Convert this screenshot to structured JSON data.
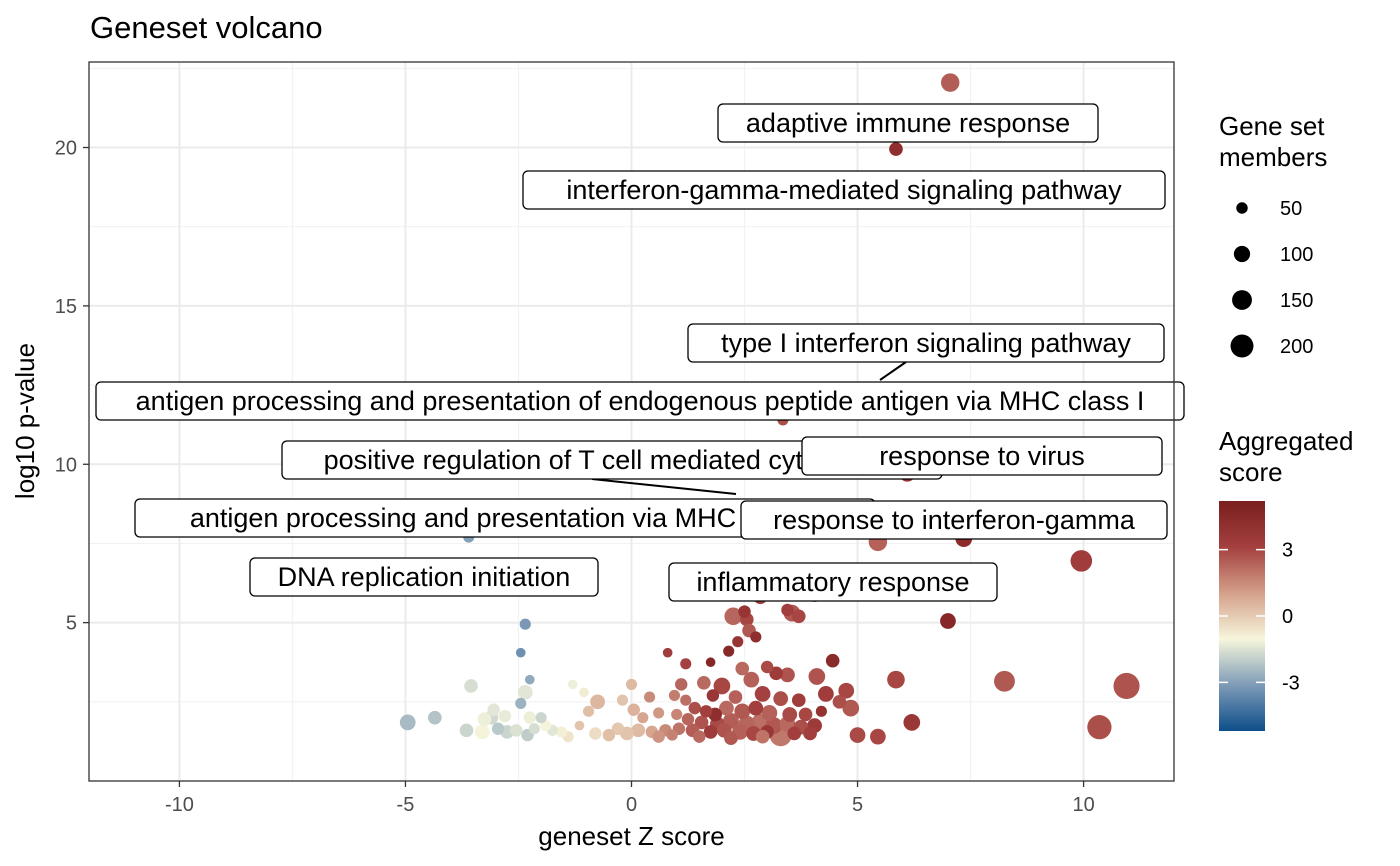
{
  "chart_data": {
    "type": "scatter",
    "title": "Geneset volcano",
    "xlabel": "geneset Z score",
    "ylabel": "log10 p-value",
    "xlim": [
      -12,
      12
    ],
    "ylim": [
      0,
      22.7
    ],
    "x_ticks": [
      -10,
      -5,
      0,
      5,
      10
    ],
    "y_ticks": [
      5,
      10,
      15,
      20
    ],
    "x_tick_labels": [
      "-10",
      "-5",
      "0",
      "5",
      "10"
    ],
    "y_tick_labels": [
      "5",
      "10",
      "15",
      "20"
    ],
    "grid": true,
    "legend_position": "right",
    "size_legend": {
      "title": "Gene set members",
      "title_lines": [
        "Gene set",
        "members"
      ],
      "entries": [
        {
          "label": "50",
          "value": 50
        },
        {
          "label": "100",
          "value": 100
        },
        {
          "label": "150",
          "value": 150
        },
        {
          "label": "200",
          "value": 200
        }
      ]
    },
    "color_legend": {
      "title": "Aggregated score",
      "title_lines": [
        "Aggregated",
        "score"
      ],
      "ticks": [
        {
          "label": "3",
          "value": 3
        },
        {
          "label": "0",
          "value": 0
        },
        {
          "label": "-3",
          "value": -3
        }
      ],
      "range": [
        -5.2,
        5.2
      ],
      "colors": [
        "#0d4e8a",
        "#7e9bb7",
        "#f6f6dc",
        "#d4a08a",
        "#a4403f",
        "#7a1e1e"
      ]
    },
    "labels": [
      {
        "text": "adaptive immune response",
        "x": 7.1,
        "y": 22.05
      },
      {
        "text": "interferon-gamma-mediated signaling pathway",
        "x": 5.85,
        "y": 19.95
      },
      {
        "text": "type I interferon signaling pathway",
        "x": 5.1,
        "y": 12.6
      },
      {
        "text": "antigen processing and presentation of endogenous peptide antigen via MHC class I",
        "x": 3.5,
        "y": 11.6
      },
      {
        "text": "positive regulation of T cell mediated cytotoxicity",
        "x": 2.4,
        "y": 9.2
      },
      {
        "text": "response to virus",
        "x": 6.1,
        "y": 9.7
      },
      {
        "text": "antigen processing and presentation via MHC class I",
        "x": 3.3,
        "y": 8.5
      },
      {
        "text": "response to interferon-gamma",
        "x": 5.5,
        "y": 7.55
      },
      {
        "text": "DNA replication initiation",
        "x": -3.6,
        "y": 7.7
      },
      {
        "text": "inflammatory response",
        "x": 3.0,
        "y": 6.2
      }
    ],
    "points": [
      {
        "x": 7.05,
        "y": 22.05,
        "size": 110,
        "score": 2.5
      },
      {
        "x": 5.85,
        "y": 19.95,
        "size": 60,
        "score": 4.2
      },
      {
        "x": 3.35,
        "y": 11.4,
        "size": 40,
        "score": 2.8
      },
      {
        "x": 6.1,
        "y": 9.7,
        "size": 80,
        "score": 4.0
      },
      {
        "x": 5.45,
        "y": 7.55,
        "size": 110,
        "score": 2.4
      },
      {
        "x": 7.35,
        "y": 7.65,
        "size": 90,
        "score": 4.3
      },
      {
        "x": 9.95,
        "y": 6.95,
        "size": 150,
        "score": 3.3
      },
      {
        "x": 7.0,
        "y": 5.05,
        "size": 80,
        "score": 4.6
      },
      {
        "x": 8.25,
        "y": 3.15,
        "size": 140,
        "score": 2.6
      },
      {
        "x": 10.95,
        "y": 3.0,
        "size": 220,
        "score": 2.7
      },
      {
        "x": 10.35,
        "y": 1.7,
        "size": 190,
        "score": 2.8
      },
      {
        "x": 5.85,
        "y": 3.2,
        "size": 100,
        "score": 3.0
      },
      {
        "x": 6.2,
        "y": 1.85,
        "size": 90,
        "score": 3.6
      },
      {
        "x": 5.0,
        "y": 1.45,
        "size": 80,
        "score": 2.9
      },
      {
        "x": 5.45,
        "y": 1.4,
        "size": 80,
        "score": 3.0
      },
      {
        "x": 4.85,
        "y": 2.3,
        "size": 90,
        "score": 2.6
      },
      {
        "x": 4.75,
        "y": 2.85,
        "size": 80,
        "score": 3.0
      },
      {
        "x": 4.6,
        "y": 2.5,
        "size": 60,
        "score": 2.8
      },
      {
        "x": 4.45,
        "y": 3.8,
        "size": 60,
        "score": 4.4
      },
      {
        "x": 4.2,
        "y": 2.2,
        "size": 40,
        "score": 4.0
      },
      {
        "x": 4.1,
        "y": 3.3,
        "size": 90,
        "score": 2.7
      },
      {
        "x": 4.3,
        "y": 2.75,
        "size": 80,
        "score": 3.3
      },
      {
        "x": 4.05,
        "y": 1.75,
        "size": 70,
        "score": 3.5
      },
      {
        "x": 3.95,
        "y": 1.5,
        "size": 60,
        "score": 3.2
      },
      {
        "x": 3.55,
        "y": 5.3,
        "size": 90,
        "score": 2.6
      },
      {
        "x": 3.7,
        "y": 5.2,
        "size": 60,
        "score": 3.0
      },
      {
        "x": 3.45,
        "y": 5.4,
        "size": 50,
        "score": 3.2
      },
      {
        "x": 4.05,
        "y": 5.85,
        "size": 50,
        "score": 3.1
      },
      {
        "x": 3.0,
        "y": 5.9,
        "size": 50,
        "score": 3.6
      },
      {
        "x": 2.85,
        "y": 5.8,
        "size": 60,
        "score": 3.2
      },
      {
        "x": 2.3,
        "y": 6.0,
        "size": 40,
        "score": 3.5
      },
      {
        "x": 2.25,
        "y": 5.2,
        "size": 100,
        "score": 2.3
      },
      {
        "x": 2.55,
        "y": 5.1,
        "size": 60,
        "score": 3.0
      },
      {
        "x": 2.5,
        "y": 5.35,
        "size": 50,
        "score": 3.8
      },
      {
        "x": 2.6,
        "y": 4.75,
        "size": 60,
        "score": 2.6
      },
      {
        "x": 2.75,
        "y": 4.55,
        "size": 40,
        "score": 4.2
      },
      {
        "x": 2.35,
        "y": 4.4,
        "size": 40,
        "score": 3.8
      },
      {
        "x": 2.15,
        "y": 4.1,
        "size": 40,
        "score": 4.5
      },
      {
        "x": 1.75,
        "y": 3.75,
        "size": 30,
        "score": 4.6
      },
      {
        "x": 1.2,
        "y": 3.7,
        "size": 40,
        "score": 3.1
      },
      {
        "x": 0.8,
        "y": 4.05,
        "size": 30,
        "score": 3.3
      },
      {
        "x": 1.1,
        "y": 3.05,
        "size": 50,
        "score": 2.3
      },
      {
        "x": 2.45,
        "y": 3.55,
        "size": 60,
        "score": 2.2
      },
      {
        "x": 3.0,
        "y": 3.6,
        "size": 50,
        "score": 2.9
      },
      {
        "x": 3.2,
        "y": 3.4,
        "size": 60,
        "score": 3.4
      },
      {
        "x": 3.45,
        "y": 3.35,
        "size": 70,
        "score": 2.7
      },
      {
        "x": 2.65,
        "y": 3.2,
        "size": 80,
        "score": 2.4
      },
      {
        "x": 2.0,
        "y": 3.0,
        "size": 90,
        "score": 3.0
      },
      {
        "x": 1.6,
        "y": 3.1,
        "size": 60,
        "score": 2.2
      },
      {
        "x": 1.8,
        "y": 2.7,
        "size": 50,
        "score": 3.7
      },
      {
        "x": 2.3,
        "y": 2.65,
        "size": 60,
        "score": 2.4
      },
      {
        "x": 2.9,
        "y": 2.75,
        "size": 80,
        "score": 3.1
      },
      {
        "x": 3.3,
        "y": 2.6,
        "size": 70,
        "score": 2.8
      },
      {
        "x": 3.7,
        "y": 2.55,
        "size": 60,
        "score": 3.3
      },
      {
        "x": 1.2,
        "y": 2.55,
        "size": 40,
        "score": 2.1
      },
      {
        "x": 0.95,
        "y": 2.7,
        "size": 40,
        "score": 1.8
      },
      {
        "x": 0.4,
        "y": 2.65,
        "size": 40,
        "score": 1.5
      },
      {
        "x": 1.4,
        "y": 2.3,
        "size": 50,
        "score": 2.8
      },
      {
        "x": 1.65,
        "y": 2.2,
        "size": 50,
        "score": 3.2
      },
      {
        "x": 1.85,
        "y": 2.1,
        "size": 60,
        "score": 4.2
      },
      {
        "x": 2.1,
        "y": 2.3,
        "size": 70,
        "score": 2.2
      },
      {
        "x": 2.45,
        "y": 2.2,
        "size": 80,
        "score": 2.6
      },
      {
        "x": 2.75,
        "y": 2.3,
        "size": 70,
        "score": 3.2
      },
      {
        "x": 3.05,
        "y": 2.15,
        "size": 80,
        "score": 2.4
      },
      {
        "x": 3.5,
        "y": 2.1,
        "size": 70,
        "score": 2.9
      },
      {
        "x": 3.85,
        "y": 2.1,
        "size": 60,
        "score": 3.0
      },
      {
        "x": 1.0,
        "y": 2.1,
        "size": 40,
        "score": 1.6
      },
      {
        "x": 0.6,
        "y": 2.15,
        "size": 40,
        "score": 1.2
      },
      {
        "x": 0.25,
        "y": 2.0,
        "size": 40,
        "score": 0.9
      },
      {
        "x": 0.05,
        "y": 2.25,
        "size": 50,
        "score": 0.6
      },
      {
        "x": 1.25,
        "y": 1.95,
        "size": 50,
        "score": 2.3
      },
      {
        "x": 1.55,
        "y": 1.85,
        "size": 60,
        "score": 2.7
      },
      {
        "x": 1.9,
        "y": 1.8,
        "size": 70,
        "score": 2.9
      },
      {
        "x": 2.2,
        "y": 1.9,
        "size": 80,
        "score": 2.5
      },
      {
        "x": 2.55,
        "y": 1.8,
        "size": 90,
        "score": 2.3
      },
      {
        "x": 2.85,
        "y": 1.85,
        "size": 100,
        "score": 2.1
      },
      {
        "x": 3.15,
        "y": 1.75,
        "size": 90,
        "score": 2.6
      },
      {
        "x": 3.45,
        "y": 1.8,
        "size": 80,
        "score": 2.2
      },
      {
        "x": 3.75,
        "y": 1.7,
        "size": 70,
        "score": 2.8
      },
      {
        "x": 1.05,
        "y": 1.65,
        "size": 50,
        "score": 2.0
      },
      {
        "x": 1.35,
        "y": 1.6,
        "size": 60,
        "score": 2.5
      },
      {
        "x": 1.75,
        "y": 1.55,
        "size": 60,
        "score": 3.4
      },
      {
        "x": 2.05,
        "y": 1.6,
        "size": 70,
        "score": 2.7
      },
      {
        "x": 2.4,
        "y": 1.55,
        "size": 80,
        "score": 2.4
      },
      {
        "x": 2.7,
        "y": 1.5,
        "size": 70,
        "score": 3.0
      },
      {
        "x": 3.0,
        "y": 1.55,
        "size": 60,
        "score": 3.6
      },
      {
        "x": 3.3,
        "y": 1.45,
        "size": 160,
        "score": 1.9
      },
      {
        "x": 3.6,
        "y": 1.5,
        "size": 60,
        "score": 3.2
      },
      {
        "x": 0.75,
        "y": 1.6,
        "size": 50,
        "score": 1.5
      },
      {
        "x": 0.45,
        "y": 1.55,
        "size": 50,
        "score": 0.9
      },
      {
        "x": 0.15,
        "y": 1.6,
        "size": 60,
        "score": 0.4
      },
      {
        "x": -0.1,
        "y": 1.5,
        "size": 60,
        "score": 0.2
      },
      {
        "x": -0.3,
        "y": 1.65,
        "size": 50,
        "score": 0.1
      },
      {
        "x": -0.5,
        "y": 1.45,
        "size": 50,
        "score": 0.3
      },
      {
        "x": -0.8,
        "y": 1.5,
        "size": 50,
        "score": -0.4
      },
      {
        "x": 0.6,
        "y": 1.4,
        "size": 50,
        "score": 1.3
      },
      {
        "x": 0.9,
        "y": 1.45,
        "size": 40,
        "score": 1.7
      },
      {
        "x": 1.5,
        "y": 1.4,
        "size": 50,
        "score": 2.2
      },
      {
        "x": 2.2,
        "y": 1.35,
        "size": 60,
        "score": 2.6
      },
      {
        "x": 2.9,
        "y": 1.4,
        "size": 60,
        "score": 2.0
      },
      {
        "x": 0.0,
        "y": 3.05,
        "size": 40,
        "score": 0.4
      },
      {
        "x": -0.2,
        "y": 2.55,
        "size": 40,
        "score": 0.2
      },
      {
        "x": -0.75,
        "y": 2.5,
        "size": 70,
        "score": 0.5
      },
      {
        "x": -0.95,
        "y": 2.2,
        "size": 40,
        "score": 0.3
      },
      {
        "x": -1.05,
        "y": 2.8,
        "size": 30,
        "score": -0.8
      },
      {
        "x": -1.3,
        "y": 3.05,
        "size": 30,
        "score": -1.2
      },
      {
        "x": -1.15,
        "y": 1.75,
        "size": 30,
        "score": 0.2
      },
      {
        "x": -1.4,
        "y": 1.4,
        "size": 40,
        "score": -0.6
      },
      {
        "x": -1.55,
        "y": 1.55,
        "size": 40,
        "score": -0.9
      },
      {
        "x": -1.75,
        "y": 1.6,
        "size": 40,
        "score": -1.4
      },
      {
        "x": -1.9,
        "y": 1.75,
        "size": 40,
        "score": -1.0
      },
      {
        "x": -2.0,
        "y": 2.0,
        "size": 40,
        "score": -1.8
      },
      {
        "x": -2.15,
        "y": 1.65,
        "size": 40,
        "score": -1.6
      },
      {
        "x": -2.3,
        "y": 1.45,
        "size": 50,
        "score": -2.0
      },
      {
        "x": -2.25,
        "y": 2.0,
        "size": 50,
        "score": -1.2
      },
      {
        "x": -2.35,
        "y": 2.8,
        "size": 70,
        "score": -1.4
      },
      {
        "x": -2.45,
        "y": 2.45,
        "size": 40,
        "score": -2.6
      },
      {
        "x": -2.25,
        "y": 3.2,
        "size": 30,
        "score": -2.8
      },
      {
        "x": -2.45,
        "y": 4.05,
        "size": 30,
        "score": -3.4
      },
      {
        "x": -2.35,
        "y": 4.95,
        "size": 40,
        "score": -3.2
      },
      {
        "x": -2.55,
        "y": 1.6,
        "size": 50,
        "score": -1.5
      },
      {
        "x": -2.8,
        "y": 2.05,
        "size": 50,
        "score": -1.3
      },
      {
        "x": -2.75,
        "y": 1.55,
        "size": 60,
        "score": -1.8
      },
      {
        "x": -2.95,
        "y": 1.65,
        "size": 50,
        "score": -2.1
      },
      {
        "x": -3.1,
        "y": 2.0,
        "size": 60,
        "score": -1.7
      },
      {
        "x": -3.05,
        "y": 2.25,
        "size": 50,
        "score": -1.4
      },
      {
        "x": -3.25,
        "y": 1.95,
        "size": 60,
        "score": -1.2
      },
      {
        "x": -3.3,
        "y": 1.55,
        "size": 70,
        "score": -1.0
      },
      {
        "x": -3.55,
        "y": 3.0,
        "size": 60,
        "score": -1.6
      },
      {
        "x": -3.65,
        "y": 1.6,
        "size": 60,
        "score": -1.8
      },
      {
        "x": -3.6,
        "y": 7.7,
        "size": 40,
        "score": -3.0
      },
      {
        "x": -4.35,
        "y": 2.0,
        "size": 60,
        "score": -2.2
      },
      {
        "x": -4.95,
        "y": 1.85,
        "size": 80,
        "score": -2.4
      }
    ]
  }
}
